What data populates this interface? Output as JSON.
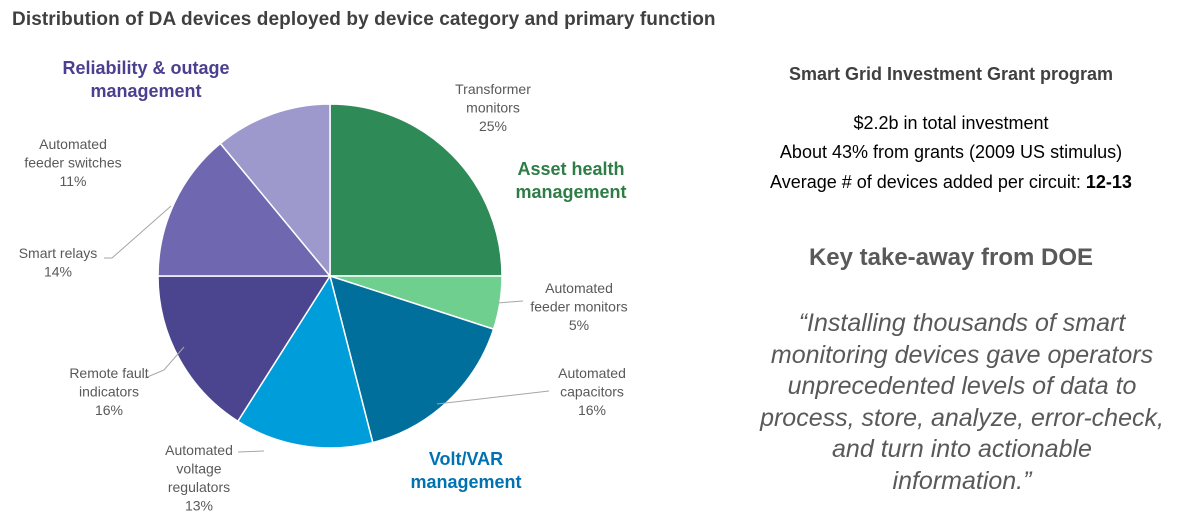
{
  "title": "Distribution  of DA devices deployed by device category and primary function",
  "chart_data": {
    "type": "pie",
    "title": "Distribution  of DA devices deployed by device category and primary function",
    "slices": [
      {
        "label": [
          "Transformer",
          "monitors"
        ],
        "pct_text": "25%",
        "value": 25,
        "color": "#2e8b57",
        "group": "Asset health management"
      },
      {
        "label": [
          "Automated",
          "feeder monitors"
        ],
        "pct_text": "5%",
        "value": 5,
        "color": "#6fcf8f",
        "group": "Asset health management"
      },
      {
        "label": [
          "Automated",
          "capacitors"
        ],
        "pct_text": "16%",
        "value": 16,
        "color": "#006f9c",
        "group": "Volt/VAR management"
      },
      {
        "label": [
          "Automated",
          "voltage",
          "regulators"
        ],
        "pct_text": "13%",
        "value": 13,
        "color": "#009ddb",
        "group": "Volt/VAR management"
      },
      {
        "label": [
          "Remote fault",
          "indicators"
        ],
        "pct_text": "16%",
        "value": 16,
        "color": "#4b4590",
        "group": "Reliability & outage management"
      },
      {
        "label": [
          "Smart relays"
        ],
        "pct_text": "14%",
        "value": 14,
        "color": "#6f68b0",
        "group": "Reliability & outage management"
      },
      {
        "label": [
          "Automated",
          "feeder switches"
        ],
        "pct_text": "11%",
        "value": 11,
        "color": "#9d99cc",
        "group": "Reliability & outage management"
      }
    ],
    "groups": [
      {
        "lines": [
          "Reliability & outage",
          "management"
        ],
        "color": "#4b3f8f"
      },
      {
        "lines": [
          "Asset health",
          "management"
        ],
        "color": "#2e7d46"
      },
      {
        "lines": [
          "Volt/VAR",
          "management"
        ],
        "color": "#0072b2"
      }
    ]
  },
  "program": {
    "title": "Smart Grid Investment Grant program",
    "line1": "$2.2b in total investment",
    "line2": "About 43% from grants (2009 US stimulus)",
    "line3_label": "Average # of devices added per circuit: ",
    "line3_value": "12-13"
  },
  "takeaway": {
    "heading": "Key take-away from DOE",
    "quote": "“Installing thousands of smart monitoring devices gave operators unprecedented levels of data to process, store, analyze, error-check, and turn into actionable information.”"
  }
}
